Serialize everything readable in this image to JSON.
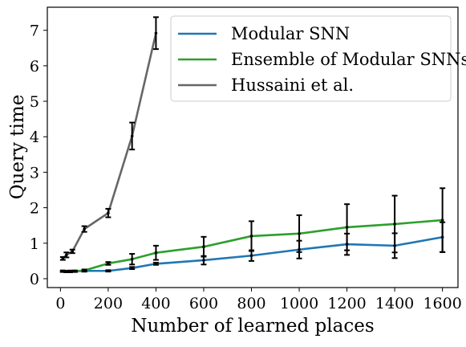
{
  "chart_data": {
    "type": "line",
    "title": "",
    "xlabel": "Number of learned places",
    "ylabel": "Query time",
    "xlim": [
      -55,
      1665
    ],
    "ylim": [
      -0.25,
      7.65
    ],
    "xticks": [
      0,
      200,
      400,
      600,
      800,
      1000,
      1200,
      1400,
      1600
    ],
    "yticks": [
      0,
      1,
      2,
      3,
      4,
      5,
      6,
      7
    ],
    "grid": false,
    "legend_position": "top-right",
    "series": [
      {
        "name": "Modular SNN",
        "color": "#1f77b4",
        "x": [
          10,
          25,
          40,
          60,
          100,
          200,
          300,
          400,
          600,
          800,
          1000,
          1200,
          1400,
          1600
        ],
        "y": [
          0.21,
          0.2,
          0.2,
          0.21,
          0.22,
          0.22,
          0.3,
          0.42,
          0.52,
          0.65,
          0.82,
          0.97,
          0.93,
          1.17
        ],
        "err": [
          0.02,
          0.02,
          0.02,
          0.02,
          0.02,
          0.02,
          0.03,
          0.03,
          0.12,
          0.15,
          0.25,
          0.3,
          0.35,
          0.42
        ]
      },
      {
        "name": "Ensemble of Modular SNNs",
        "color": "#2ca02c",
        "x": [
          10,
          25,
          40,
          60,
          100,
          200,
          300,
          400,
          600,
          800,
          1000,
          1200,
          1400,
          1600
        ],
        "y": [
          0.21,
          0.2,
          0.21,
          0.21,
          0.23,
          0.43,
          0.55,
          0.73,
          0.9,
          1.2,
          1.27,
          1.45,
          1.54,
          1.65
        ],
        "err": [
          0.02,
          0.02,
          0.02,
          0.02,
          0.03,
          0.04,
          0.15,
          0.2,
          0.28,
          0.42,
          0.52,
          0.65,
          0.8,
          0.9
        ]
      },
      {
        "name": "Hussaini et al.",
        "color": "#666666",
        "x": [
          10,
          25,
          50,
          100,
          200,
          300,
          400
        ],
        "y": [
          0.57,
          0.67,
          0.77,
          1.4,
          1.85,
          4.02,
          6.92
        ],
        "err": [
          0.04,
          0.07,
          0.05,
          0.08,
          0.12,
          0.38,
          0.45
        ]
      }
    ]
  }
}
